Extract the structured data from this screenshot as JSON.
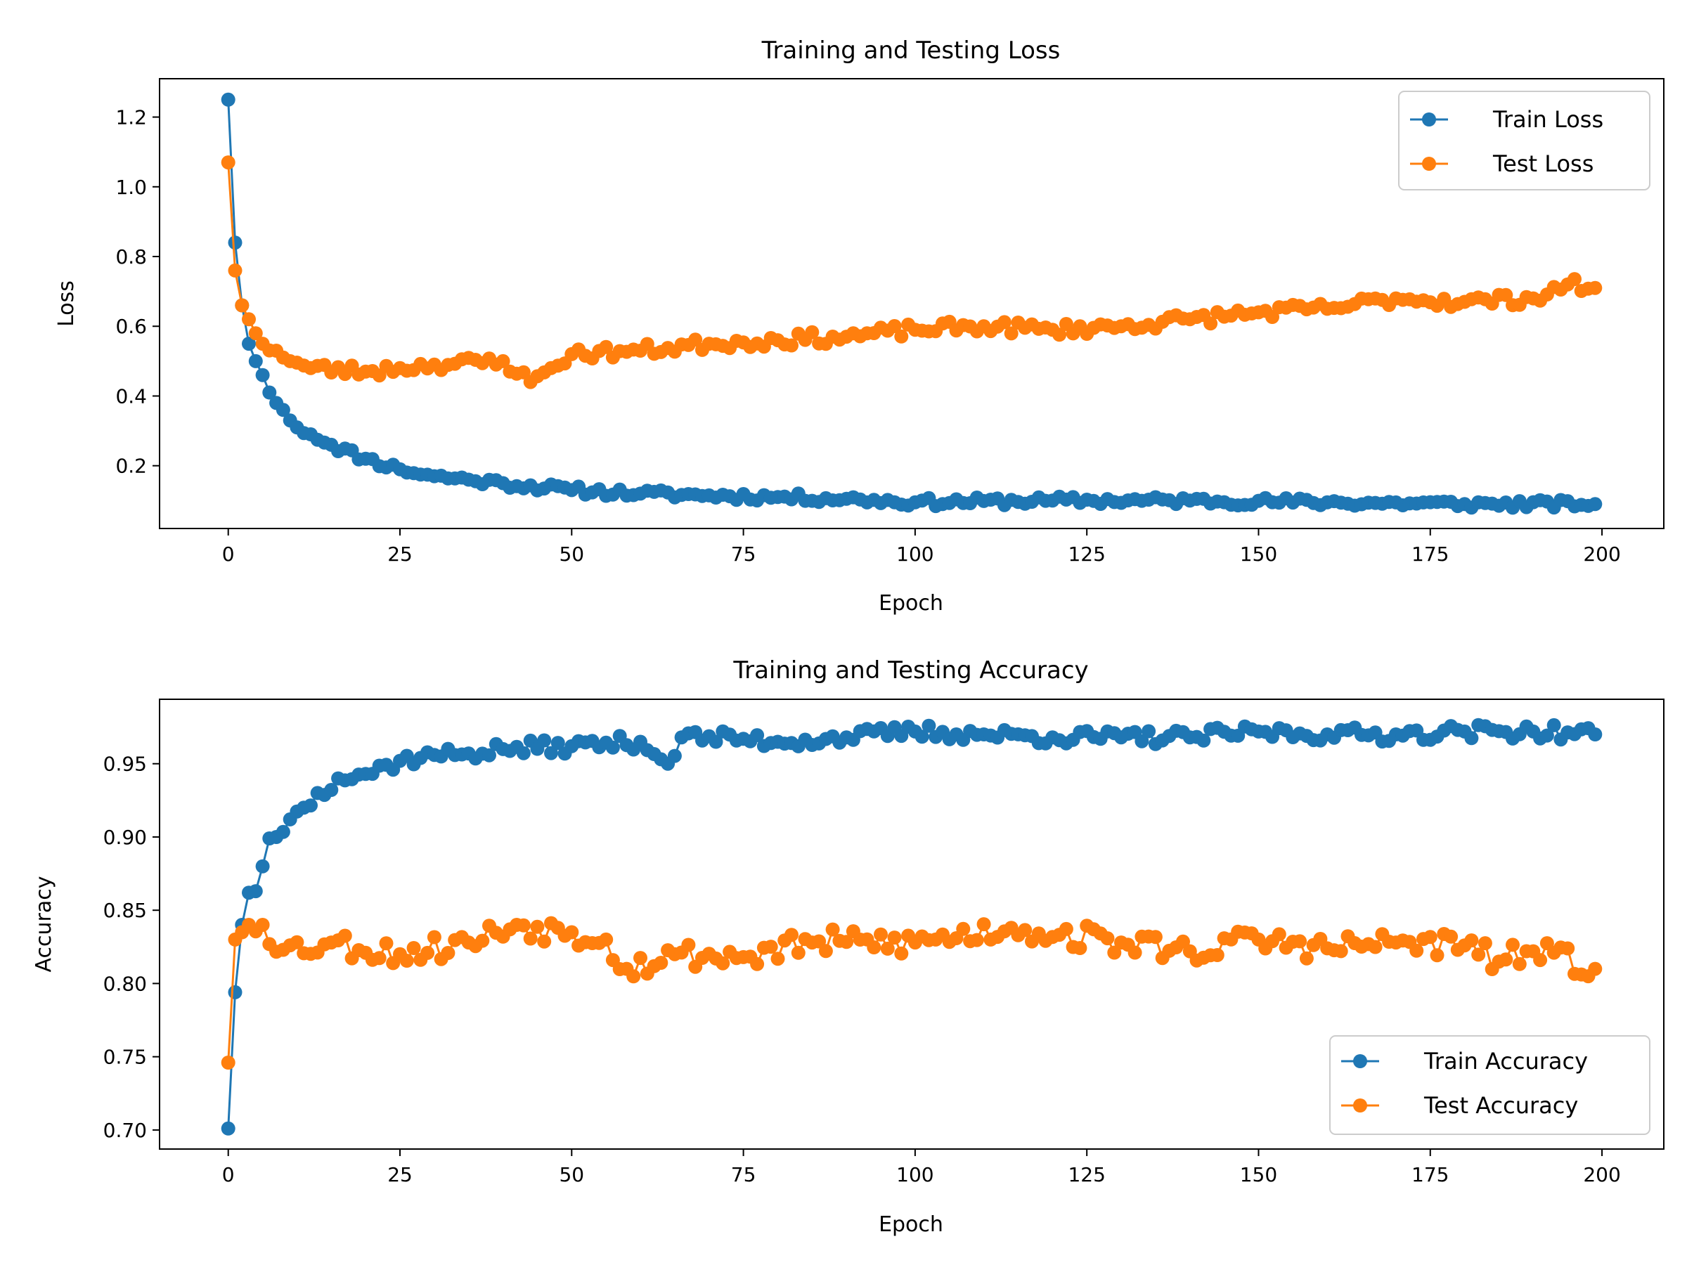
{
  "colors": {
    "train": "#1f77b4",
    "test": "#ff7f0e"
  },
  "chart_data": [
    {
      "type": "line",
      "title": "Training and Testing Loss",
      "xlabel": "Epoch",
      "ylabel": "Loss",
      "xlim": [
        -10,
        209
      ],
      "ylim": [
        0.02,
        1.31
      ],
      "xticks": [
        0,
        25,
        50,
        75,
        100,
        125,
        150,
        175,
        200
      ],
      "yticks": [
        0.2,
        0.4,
        0.6,
        0.8,
        1.0,
        1.2
      ],
      "ytick_format": 1,
      "legend_position": "top-right",
      "marker": "circle",
      "grid": false,
      "series": [
        {
          "name": "Train Loss",
          "color": "#1f77b4",
          "anchors": [
            [
              0,
              1.25
            ],
            [
              1,
              0.84
            ],
            [
              2,
              0.66
            ],
            [
              3,
              0.55
            ],
            [
              4,
              0.5
            ],
            [
              5,
              0.46
            ],
            [
              6,
              0.41
            ],
            [
              7,
              0.38
            ],
            [
              8,
              0.36
            ],
            [
              9,
              0.33
            ],
            [
              10,
              0.31
            ],
            [
              12,
              0.29
            ],
            [
              15,
              0.26
            ],
            [
              20,
              0.22
            ],
            [
              25,
              0.19
            ],
            [
              30,
              0.17
            ],
            [
              35,
              0.16
            ],
            [
              40,
              0.15
            ],
            [
              50,
              0.13
            ],
            [
              60,
              0.12
            ],
            [
              70,
              0.115
            ],
            [
              80,
              0.11
            ],
            [
              90,
              0.105
            ],
            [
              100,
              0.095
            ],
            [
              120,
              0.1
            ],
            [
              140,
              0.1
            ],
            [
              160,
              0.095
            ],
            [
              180,
              0.09
            ],
            [
              199,
              0.09
            ]
          ],
          "noise": 0.012,
          "seed": 11
        },
        {
          "name": "Test Loss",
          "color": "#ff7f0e",
          "anchors": [
            [
              0,
              1.07
            ],
            [
              1,
              0.76
            ],
            [
              2,
              0.66
            ],
            [
              3,
              0.62
            ],
            [
              4,
              0.58
            ],
            [
              5,
              0.55
            ],
            [
              7,
              0.53
            ],
            [
              9,
              0.5
            ],
            [
              12,
              0.48
            ],
            [
              20,
              0.47
            ],
            [
              25,
              0.48
            ],
            [
              30,
              0.49
            ],
            [
              40,
              0.5
            ],
            [
              44,
              0.44
            ],
            [
              47,
              0.48
            ],
            [
              50,
              0.52
            ],
            [
              60,
              0.53
            ],
            [
              70,
              0.55
            ],
            [
              80,
              0.56
            ],
            [
              90,
              0.57
            ],
            [
              100,
              0.59
            ],
            [
              110,
              0.6
            ],
            [
              120,
              0.59
            ],
            [
              130,
              0.6
            ],
            [
              140,
              0.62
            ],
            [
              150,
              0.64
            ],
            [
              160,
              0.65
            ],
            [
              170,
              0.68
            ],
            [
              180,
              0.67
            ],
            [
              190,
              0.68
            ],
            [
              195,
              0.72
            ],
            [
              199,
              0.71
            ]
          ],
          "noise": 0.018,
          "seed": 23
        }
      ]
    },
    {
      "type": "line",
      "title": "Training and Testing Accuracy",
      "xlabel": "Epoch",
      "ylabel": "Accuracy",
      "xlim": [
        -10,
        209
      ],
      "ylim": [
        0.687,
        0.994
      ],
      "xticks": [
        0,
        25,
        50,
        75,
        100,
        125,
        150,
        175,
        200
      ],
      "yticks": [
        0.7,
        0.75,
        0.8,
        0.85,
        0.9,
        0.95
      ],
      "ytick_format": 2,
      "legend_position": "lower-right",
      "marker": "circle",
      "grid": false,
      "series": [
        {
          "name": "Train Accuracy",
          "color": "#1f77b4",
          "anchors": [
            [
              0,
              0.701
            ],
            [
              1,
              0.794
            ],
            [
              2,
              0.84
            ],
            [
              3,
              0.862
            ],
            [
              4,
              0.863
            ],
            [
              5,
              0.88
            ],
            [
              6,
              0.899
            ],
            [
              7,
              0.9
            ],
            [
              9,
              0.912
            ],
            [
              11,
              0.92
            ],
            [
              13,
              0.93
            ],
            [
              16,
              0.94
            ],
            [
              20,
              0.943
            ],
            [
              25,
              0.952
            ],
            [
              30,
              0.956
            ],
            [
              35,
              0.957
            ],
            [
              40,
              0.96
            ],
            [
              50,
              0.962
            ],
            [
              60,
              0.965
            ],
            [
              64,
              0.95
            ],
            [
              66,
              0.968
            ],
            [
              75,
              0.967
            ],
            [
              80,
              0.965
            ],
            [
              90,
              0.968
            ],
            [
              100,
              0.972
            ],
            [
              110,
              0.97
            ],
            [
              120,
              0.968
            ],
            [
              130,
              0.968
            ],
            [
              140,
              0.968
            ],
            [
              150,
              0.972
            ],
            [
              160,
              0.97
            ],
            [
              170,
              0.97
            ],
            [
              180,
              0.972
            ],
            [
              190,
              0.972
            ],
            [
              199,
              0.97
            ]
          ],
          "noise": 0.005,
          "seed": 37
        },
        {
          "name": "Test Accuracy",
          "color": "#ff7f0e",
          "anchors": [
            [
              0,
              0.746
            ],
            [
              1,
              0.83
            ],
            [
              2,
              0.835
            ],
            [
              3,
              0.84
            ],
            [
              5,
              0.84
            ],
            [
              8,
              0.823
            ],
            [
              15,
              0.828
            ],
            [
              25,
              0.82
            ],
            [
              35,
              0.828
            ],
            [
              42,
              0.84
            ],
            [
              50,
              0.835
            ],
            [
              55,
              0.83
            ],
            [
              58,
              0.81
            ],
            [
              65,
              0.82
            ],
            [
              75,
              0.818
            ],
            [
              85,
              0.828
            ],
            [
              100,
              0.828
            ],
            [
              114,
              0.838
            ],
            [
              130,
              0.828
            ],
            [
              140,
              0.822
            ],
            [
              150,
              0.83
            ],
            [
              160,
              0.824
            ],
            [
              170,
              0.828
            ],
            [
              180,
              0.826
            ],
            [
              185,
              0.815
            ],
            [
              190,
              0.822
            ],
            [
              199,
              0.81
            ]
          ],
          "noise": 0.009,
          "seed": 53
        }
      ]
    }
  ]
}
